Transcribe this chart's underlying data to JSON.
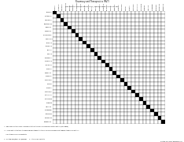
{
  "title_line1": "Pharmacy and Therapeutics (P&T)",
  "title_line2": "ANTIBIOTIC CROSS REACTIVITY / CROSS SENSITIVITY CHART",
  "antibiotics": [
    "Amikacin",
    "Gentamicin",
    "Tobramycin",
    "Streptomycin",
    "Neomycin",
    "Kanamycin",
    "Paromomycin",
    "Penicillin G",
    "Ampicillin",
    "Amoxicillin",
    "Nafcillin",
    "Oxacillin",
    "Dicloxacillin",
    "Carbenicillin",
    "Piperacillin",
    "Cefazolin",
    "Cephalexin",
    "Cefadroxil",
    "Cefuroxime",
    "Cefaclor",
    "Cefoxitin",
    "Cefotaxime",
    "Ceftriaxone",
    "Ceftazidime",
    "Cefepime",
    "Imipenem",
    "Meropenem",
    "Aztreonam",
    "Vancomycin",
    "Clindamycin"
  ],
  "n": 30,
  "bg_color": "#ffffff",
  "grid_color": "#000000",
  "fill_color": "#000000",
  "footnote1": "* = May cross-react using E1% cross-specific test for the fluoroquinolone confirmation reactions (Refs below)",
  "footnote2": "** = Cross-reactions that do not involve making between structurally similar drug compounds; however, these cross-reactions",
  "footnote3": "     are not specific for cross-sensitivity.",
  "footnote4": "1 = Multiple drug/atopic drug/phenols      2 = Atopic cross-reactants",
  "source": "Created: 3-29-2014; Revised 6/2014"
}
